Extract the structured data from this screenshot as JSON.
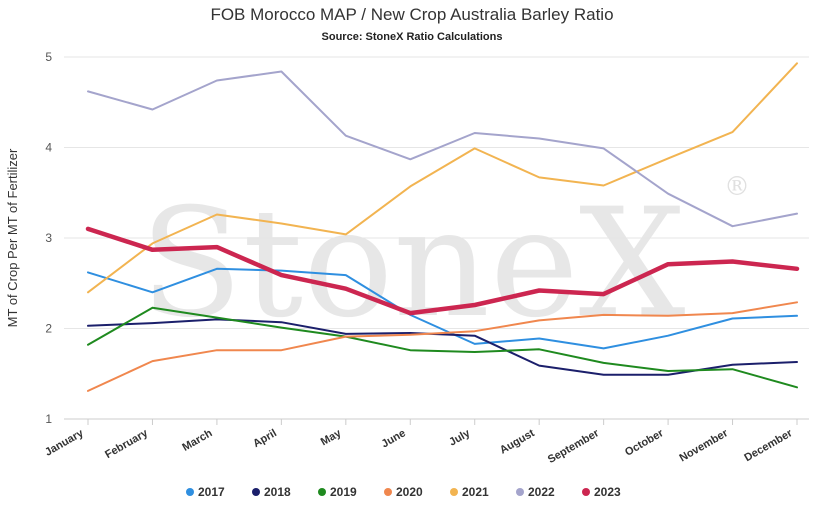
{
  "chart_data": {
    "type": "line",
    "title": "FOB Morocco MAP / New Crop Australia Barley Ratio",
    "subtitle": "Source: StoneX Ratio Calculations",
    "ylabel": "MT of Crop Per MT of Fertilizer",
    "xlabel": "",
    "ylim": [
      1,
      5
    ],
    "yticks": [
      1,
      2,
      3,
      4,
      5
    ],
    "grid": true,
    "legend_position": "bottom-center",
    "watermark": "StoneX",
    "categories": [
      "January",
      "February",
      "March",
      "April",
      "May",
      "June",
      "July",
      "August",
      "September",
      "October",
      "November",
      "December"
    ],
    "series": [
      {
        "name": "2017",
        "color": "#2f8fe0",
        "bold": false,
        "values": [
          2.62,
          2.4,
          2.66,
          2.64,
          2.59,
          2.15,
          1.83,
          1.89,
          1.78,
          1.92,
          2.11,
          2.14
        ]
      },
      {
        "name": "2018",
        "color": "#1b1f6b",
        "bold": false,
        "values": [
          2.03,
          2.06,
          2.1,
          2.07,
          1.94,
          1.95,
          1.92,
          1.59,
          1.49,
          1.49,
          1.6,
          1.63
        ]
      },
      {
        "name": "2019",
        "color": "#1f8a1f",
        "bold": false,
        "values": [
          1.82,
          2.23,
          2.12,
          2.01,
          1.91,
          1.76,
          1.74,
          1.77,
          1.62,
          1.53,
          1.55,
          1.35
        ]
      },
      {
        "name": "2020",
        "color": "#f0874e",
        "bold": false,
        "values": [
          1.31,
          1.64,
          1.76,
          1.76,
          1.91,
          1.93,
          1.97,
          2.09,
          2.15,
          2.14,
          2.17,
          2.29
        ]
      },
      {
        "name": "2021",
        "color": "#f2b451",
        "bold": false,
        "values": [
          2.4,
          2.94,
          3.26,
          3.16,
          3.04,
          3.57,
          3.99,
          3.67,
          3.58,
          3.88,
          4.17,
          4.93
        ]
      },
      {
        "name": "2022",
        "color": "#a4a4cc",
        "bold": false,
        "values": [
          4.62,
          4.42,
          4.74,
          4.84,
          4.13,
          3.87,
          4.16,
          4.1,
          3.99,
          3.49,
          3.13,
          3.27
        ]
      },
      {
        "name": "2023",
        "color": "#cc2650",
        "bold": true,
        "values": [
          3.1,
          2.87,
          2.9,
          2.59,
          2.44,
          2.17,
          2.26,
          2.42,
          2.38,
          2.71,
          2.74,
          2.66
        ]
      }
    ]
  }
}
